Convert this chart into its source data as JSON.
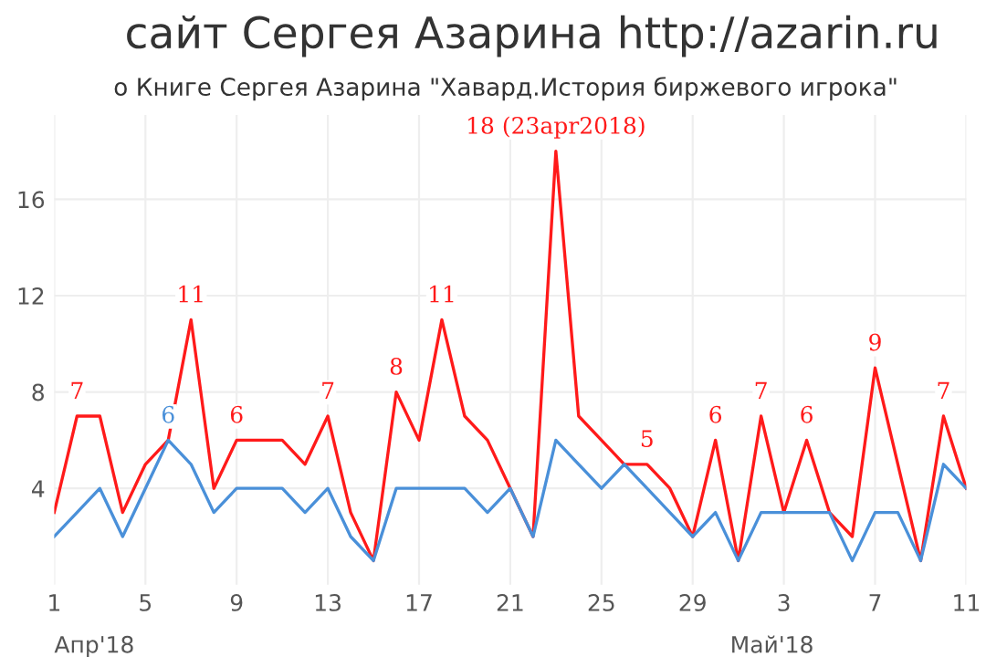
{
  "chart_data": {
    "type": "line",
    "title": "сайт Сергея Азарина http://azarin.ru",
    "subtitle": "о Книге Сергея Азарина \"Хавард.История биржевого игрока\"",
    "x": [
      "2018-04-01",
      "2018-04-02",
      "2018-04-03",
      "2018-04-04",
      "2018-04-05",
      "2018-04-06",
      "2018-04-07",
      "2018-04-08",
      "2018-04-09",
      "2018-04-10",
      "2018-04-11",
      "2018-04-12",
      "2018-04-13",
      "2018-04-14",
      "2018-04-15",
      "2018-04-16",
      "2018-04-17",
      "2018-04-18",
      "2018-04-19",
      "2018-04-20",
      "2018-04-21",
      "2018-04-22",
      "2018-04-23",
      "2018-04-24",
      "2018-04-25",
      "2018-04-26",
      "2018-04-27",
      "2018-04-28",
      "2018-04-29",
      "2018-04-30",
      "2018-05-01",
      "2018-05-02",
      "2018-05-03",
      "2018-05-04",
      "2018-05-05",
      "2018-05-06",
      "2018-05-07",
      "2018-05-08",
      "2018-05-09",
      "2018-05-10",
      "2018-05-11"
    ],
    "series": [
      {
        "color": "#ff1a1a",
        "values": [
          3,
          7,
          7,
          3,
          5,
          6,
          11,
          4,
          6,
          6,
          6,
          5,
          7,
          3,
          1,
          8,
          6,
          11,
          7,
          6,
          4,
          2,
          18,
          7,
          6,
          5,
          5,
          4,
          2,
          6,
          1,
          7,
          3,
          6,
          3,
          2,
          9,
          5,
          1,
          7,
          4
        ],
        "value_labels": [
          null,
          "7",
          null,
          null,
          null,
          null,
          "11",
          null,
          "6",
          null,
          null,
          null,
          "7",
          null,
          null,
          "8",
          null,
          "11",
          null,
          null,
          null,
          null,
          "18 (23apr2018)",
          null,
          null,
          null,
          "5",
          null,
          null,
          "6",
          null,
          "7",
          null,
          "6",
          null,
          null,
          "9",
          null,
          null,
          "7",
          null
        ]
      },
      {
        "color": "#4a90d9",
        "values": [
          2,
          3,
          4,
          2,
          4,
          6,
          5,
          3,
          4,
          4,
          4,
          3,
          4,
          2,
          1,
          4,
          4,
          4,
          4,
          3,
          4,
          2,
          6,
          5,
          4,
          5,
          4,
          3,
          2,
          3,
          1,
          3,
          3,
          3,
          3,
          1,
          3,
          3,
          1,
          5,
          4
        ],
        "value_labels": [
          null,
          null,
          null,
          null,
          null,
          "6",
          null,
          null,
          null,
          null,
          null,
          null,
          null,
          null,
          null,
          null,
          null,
          null,
          null,
          null,
          null,
          null,
          null,
          null,
          null,
          null,
          null,
          null,
          null,
          null,
          null,
          null,
          null,
          null,
          null,
          null,
          null,
          null,
          null,
          null,
          null
        ]
      }
    ],
    "xlim": [
      "2018-04-01",
      "2018-05-11"
    ],
    "xticks": [
      {
        "value": "2018-04-01",
        "label": "1"
      },
      {
        "value": "2018-04-05",
        "label": "5"
      },
      {
        "value": "2018-04-09",
        "label": "9"
      },
      {
        "value": "2018-04-13",
        "label": "13"
      },
      {
        "value": "2018-04-17",
        "label": "17"
      },
      {
        "value": "2018-04-21",
        "label": "21"
      },
      {
        "value": "2018-04-25",
        "label": "25"
      },
      {
        "value": "2018-04-29",
        "label": "29"
      },
      {
        "value": "2018-05-03",
        "label": "3"
      },
      {
        "value": "2018-05-07",
        "label": "7"
      },
      {
        "value": "2018-05-11",
        "label": "11"
      }
    ],
    "ylim": [
      0,
      19.5
    ],
    "yticks": [
      4,
      8,
      12,
      16
    ],
    "grid": true,
    "line_style": "solid",
    "marker": "none",
    "annotations": [
      "Апр'18",
      "Май'18"
    ]
  }
}
